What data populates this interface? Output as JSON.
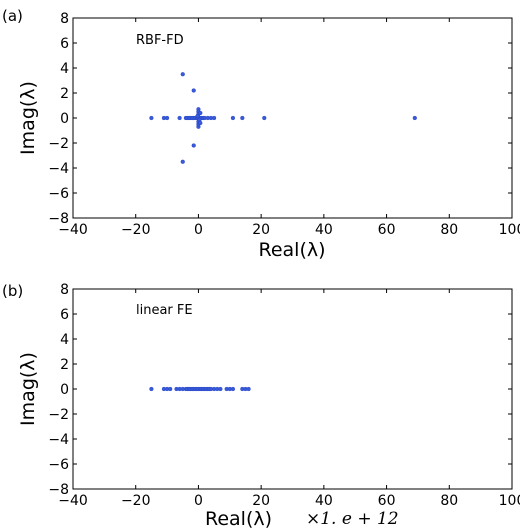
{
  "chart_data": [
    {
      "type": "scatter",
      "panel_label": "(a)",
      "annotation": "RBF-FD",
      "xlabel": "Real(λ)",
      "ylabel": "Imag(λ)",
      "xlim": [
        -40,
        100
      ],
      "ylim": [
        -8,
        8
      ],
      "xticks": [
        "−40",
        "−20",
        "0",
        "20",
        "40",
        "60",
        "80",
        "100"
      ],
      "yticks": [
        "8",
        "6",
        "4",
        "2",
        "0",
        "−2",
        "−4",
        "−6",
        "−8"
      ],
      "grid": false,
      "marker_color": "#3a5bd9",
      "points": [
        [
          -15,
          0
        ],
        [
          -11,
          0
        ],
        [
          -10,
          0
        ],
        [
          -6,
          0
        ],
        [
          -4,
          0
        ],
        [
          -3.5,
          0
        ],
        [
          -3,
          0
        ],
        [
          -2.5,
          0
        ],
        [
          -2,
          0
        ],
        [
          -1.5,
          0
        ],
        [
          -1,
          0
        ],
        [
          -0.5,
          0
        ],
        [
          0,
          0
        ],
        [
          0.5,
          0
        ],
        [
          1,
          0
        ],
        [
          1.5,
          0
        ],
        [
          2,
          0
        ],
        [
          3,
          0
        ],
        [
          4,
          0
        ],
        [
          5,
          0
        ],
        [
          11,
          0
        ],
        [
          14,
          0
        ],
        [
          21,
          0
        ],
        [
          69,
          0
        ],
        [
          -5,
          3.5
        ],
        [
          -5,
          -3.5
        ],
        [
          -1.5,
          2.2
        ],
        [
          -1.5,
          -2.2
        ],
        [
          0,
          0.7
        ],
        [
          0,
          -0.7
        ],
        [
          0,
          0.5
        ],
        [
          0,
          -0.5
        ],
        [
          0,
          0.3
        ],
        [
          0,
          -0.3
        ],
        [
          -0.3,
          0.15
        ],
        [
          0.3,
          -0.15
        ],
        [
          0.6,
          0.4
        ],
        [
          0.6,
          -0.4
        ]
      ]
    },
    {
      "type": "scatter",
      "panel_label": "(b)",
      "annotation": "linear FE",
      "xlabel": "Real(λ)",
      "x_scale_suffix": "×1. e + 12",
      "ylabel": "Imag(λ)",
      "xlim": [
        -40,
        100
      ],
      "ylim": [
        -8,
        8
      ],
      "xticks": [
        "−40",
        "−20",
        "0",
        "20",
        "40",
        "60",
        "80",
        "100"
      ],
      "yticks": [
        "8",
        "6",
        "4",
        "2",
        "0",
        "−2",
        "−4",
        "−6",
        "−8"
      ],
      "grid": false,
      "marker_color": "#3a5bd9",
      "points": [
        [
          -15,
          0
        ],
        [
          -11,
          0
        ],
        [
          -10,
          0
        ],
        [
          -9,
          0
        ],
        [
          -7,
          0
        ],
        [
          -6,
          0
        ],
        [
          -5,
          0
        ],
        [
          -4,
          0
        ],
        [
          -3.5,
          0
        ],
        [
          -3,
          0
        ],
        [
          -2.5,
          0
        ],
        [
          -2,
          0
        ],
        [
          -1.5,
          0
        ],
        [
          -1,
          0
        ],
        [
          -0.5,
          0
        ],
        [
          0,
          0
        ],
        [
          0.5,
          0
        ],
        [
          1,
          0
        ],
        [
          1.5,
          0
        ],
        [
          2,
          0
        ],
        [
          2.5,
          0
        ],
        [
          3,
          0
        ],
        [
          3.5,
          0
        ],
        [
          4,
          0
        ],
        [
          5,
          0
        ],
        [
          6,
          0
        ],
        [
          7,
          0
        ],
        [
          9,
          0
        ],
        [
          10,
          0
        ],
        [
          11,
          0
        ],
        [
          14,
          0
        ],
        [
          15,
          0
        ],
        [
          16,
          0
        ]
      ]
    }
  ]
}
